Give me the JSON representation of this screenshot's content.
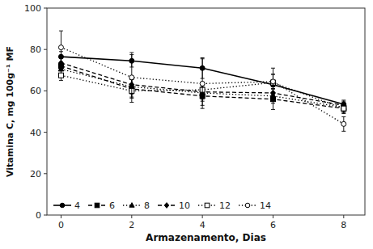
{
  "chart_data": {
    "type": "line",
    "xlabel": "Armazenamento, Dias",
    "ylabel": "Vitamina C, mg 100g⁻¹ MF",
    "x": [
      0,
      2,
      4,
      6,
      8
    ],
    "xlim": [
      -0.4,
      8.6
    ],
    "ylim": [
      0,
      100
    ],
    "xticks": [
      0,
      2,
      4,
      6,
      8
    ],
    "yticks": [
      0,
      20,
      40,
      60,
      80,
      100
    ],
    "grid": false,
    "legend": "lower left",
    "color": "black",
    "series": [
      {
        "name": "4",
        "values": [
          76.5,
          74.5,
          71.0,
          63.0,
          53.5
        ],
        "errors": [
          2.5,
          3.0,
          5.0,
          5.0,
          2.0
        ],
        "marker": "circle",
        "line_style": "solid"
      },
      {
        "name": "6",
        "values": [
          72.0,
          61.0,
          57.5,
          56.0,
          51.5
        ],
        "errors": [
          4.0,
          4.5,
          4.5,
          5.0,
          2.0
        ],
        "marker": "square",
        "line_style": "dashed"
      },
      {
        "name": "8",
        "values": [
          70.5,
          62.0,
          59.0,
          57.5,
          52.0
        ],
        "errors": [
          3.5,
          3.5,
          4.0,
          3.5,
          2.0
        ],
        "marker": "triangle",
        "line_style": "dotted"
      },
      {
        "name": "10",
        "values": [
          73.5,
          63.0,
          59.5,
          59.0,
          53.0
        ],
        "errors": [
          3.0,
          3.0,
          3.5,
          3.0,
          2.0
        ],
        "marker": "diamond",
        "line_style": "dashed"
      },
      {
        "name": "12",
        "values": [
          67.5,
          60.0,
          60.5,
          64.0,
          51.5
        ],
        "errors": [
          2.5,
          3.0,
          3.5,
          7.0,
          2.5
        ],
        "marker": "open-square",
        "line_style": "dotted"
      },
      {
        "name": "14",
        "values": [
          81.0,
          66.5,
          63.5,
          64.5,
          44.0
        ],
        "errors": [
          8.0,
          12.0,
          12.0,
          3.5,
          3.5
        ],
        "marker": "open-circle",
        "line_style": "dotted"
      }
    ]
  }
}
